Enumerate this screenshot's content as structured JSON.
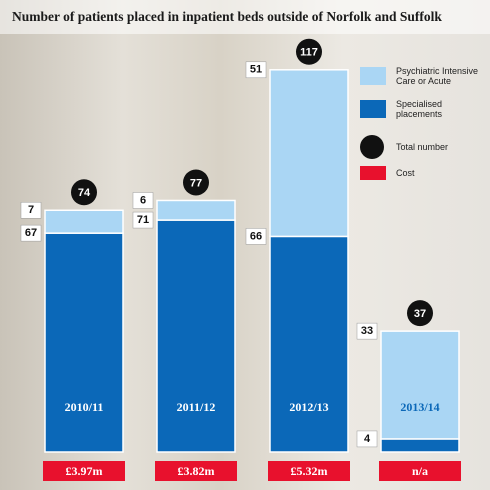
{
  "chart_data": {
    "type": "stacked-bar",
    "title": "Number of patients placed in inpatient beds outside of Norfolk and Suffolk",
    "categories": [
      "2010/11",
      "2011/12",
      "2012/13",
      "2013/14"
    ],
    "series": [
      {
        "name": "Specialised placements",
        "color": "#0b68b8",
        "values": [
          67,
          71,
          66,
          4
        ]
      },
      {
        "name": "Psychiatric Intensive Care or Acute",
        "color": "#aad6f4",
        "values": [
          7,
          6,
          51,
          33
        ]
      }
    ],
    "totals": [
      74,
      77,
      117,
      37
    ],
    "total_label": "Total number",
    "costs": [
      "£3.97m",
      "£3.82m",
      "£5.32m",
      "n/a"
    ],
    "cost_label": "Cost",
    "ylim": [
      0,
      120
    ]
  }
}
